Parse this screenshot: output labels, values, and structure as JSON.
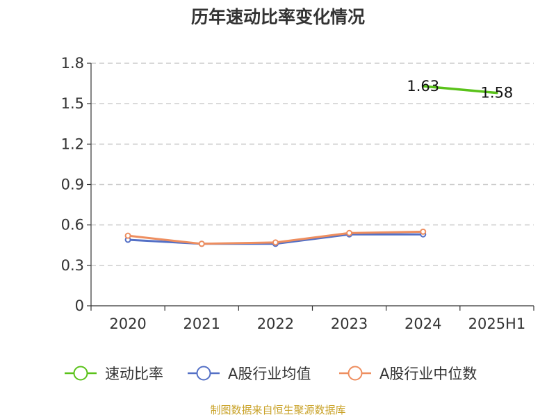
{
  "chart_data": {
    "type": "line",
    "title": "历年速动比率变化情况",
    "categories": [
      "2020",
      "2021",
      "2022",
      "2023",
      "2024",
      "2025H1"
    ],
    "y_ticks": [
      "0",
      "0.3",
      "0.6",
      "0.9",
      "1.2",
      "1.5",
      "1.8"
    ],
    "ylim": [
      0,
      1.8
    ],
    "grid": true,
    "legend_position": "bottom",
    "series": [
      {
        "name": "速动比率",
        "color": "#5ac21a",
        "values": [
          null,
          null,
          null,
          null,
          1.63,
          1.58
        ],
        "labels": [
          "",
          "",
          "",
          "",
          "1.63",
          "1.58"
        ],
        "show_markers": false
      },
      {
        "name": "A股行业均值",
        "color": "#5470c6",
        "values": [
          0.49,
          0.46,
          0.46,
          0.53,
          0.53,
          null
        ],
        "labels": [
          "",
          "",
          "",
          "",
          "",
          ""
        ],
        "show_markers": true
      },
      {
        "name": "A股行业中位数",
        "color": "#ee8e5f",
        "values": [
          0.52,
          0.46,
          0.47,
          0.54,
          0.55,
          null
        ],
        "labels": [
          "",
          "",
          "",
          "",
          "",
          ""
        ],
        "show_markers": true
      }
    ],
    "source": "制图数据来自恒生聚源数据库",
    "source_color": "#c9a227"
  }
}
